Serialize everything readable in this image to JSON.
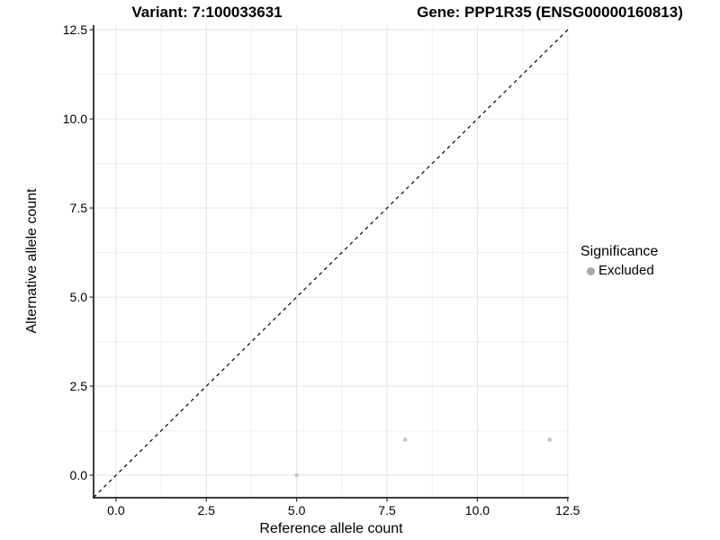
{
  "titles": {
    "variant": "Variant: 7:100033631",
    "gene": "Gene: PPP1R35 (ENSG00000160813)"
  },
  "axes": {
    "x": {
      "label": "Reference allele count",
      "tick_labels": [
        "0.0",
        "2.5",
        "5.0",
        "7.5",
        "10.0",
        "12.5"
      ]
    },
    "y": {
      "label": "Alternative allele count",
      "tick_labels": [
        "0.0",
        "2.5",
        "5.0",
        "7.5",
        "10.0",
        "12.5"
      ]
    }
  },
  "legend": {
    "title": "Significance",
    "items": [
      {
        "label": "Excluded",
        "key_color": "#a8a8a8"
      }
    ]
  },
  "colors": {
    "background": "#ffffff",
    "text": "#000000",
    "grid_major": "#e2e2e2",
    "grid_minor": "#f0f0f0",
    "axis_line": "#3f3f3f",
    "tick": "#333333",
    "identity_line": "#000000"
  },
  "chart_data": {
    "type": "scatter",
    "title": "Variant: 7:100033631 | Gene: PPP1R35 (ENSG00000160813)",
    "xlabel": "Reference allele count",
    "ylabel": "Alternative allele count",
    "xlim": [
      -0.62,
      12.53
    ],
    "ylim": [
      -0.63,
      12.63
    ],
    "x_major_ticks": [
      0,
      2.5,
      5,
      7.5,
      10,
      12.5
    ],
    "y_major_ticks": [
      0,
      2.5,
      5,
      7.5,
      10,
      12.5
    ],
    "x_minor_ticks": [
      1.25,
      3.75,
      6.25,
      8.75,
      11.25
    ],
    "y_minor_ticks": [
      1.25,
      3.75,
      6.25,
      8.75,
      11.25
    ],
    "grid": true,
    "legend_position": "right-center",
    "identity_line": {
      "slope": 1,
      "intercept": 0,
      "style": "dashed"
    },
    "series": [
      {
        "name": "Excluded",
        "color": "#c6c6c6",
        "points": [
          [
            5,
            0
          ],
          [
            8,
            1
          ],
          [
            12,
            1
          ]
        ]
      }
    ]
  }
}
